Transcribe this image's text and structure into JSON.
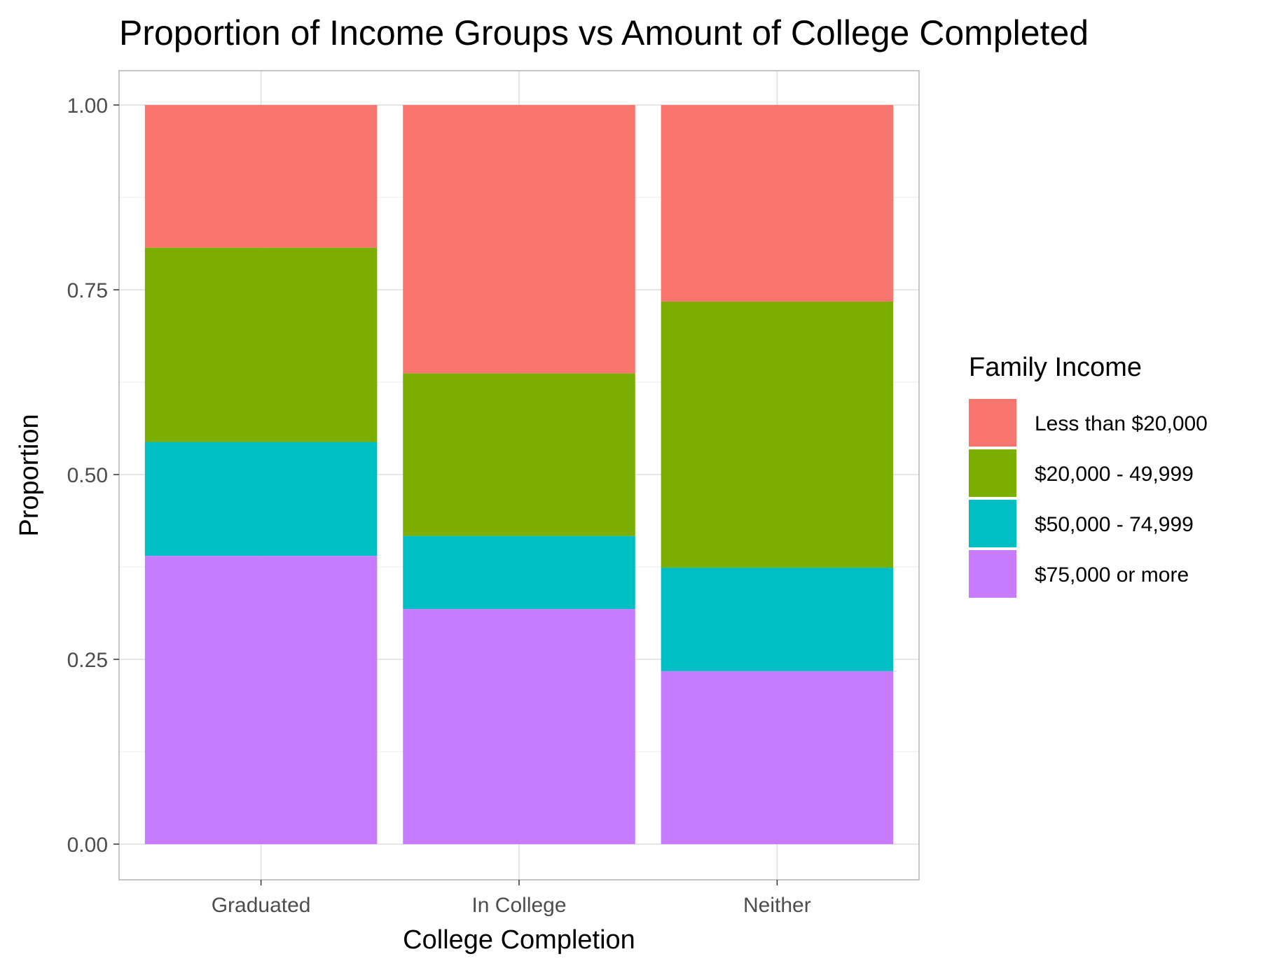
{
  "chart_data": {
    "type": "bar",
    "stacked": true,
    "title": "Proportion of Income Groups vs Amount of College Completed",
    "xlabel": "College Completion",
    "ylabel": "Proportion",
    "categories": [
      "Graduated",
      "In College",
      "Neither"
    ],
    "ylim": [
      0,
      1
    ],
    "y_ticks": [
      "0.00",
      "0.25",
      "0.50",
      "0.75",
      "1.00"
    ],
    "grid": true,
    "legend": {
      "title": "Family Income",
      "position": "right"
    },
    "series": [
      {
        "name": "$75,000 or more",
        "color": "#C77CFF",
        "values": [
          0.39,
          0.318,
          0.234
        ]
      },
      {
        "name": "$50,000 - 74,999",
        "color": "#00BFC4",
        "values": [
          0.154,
          0.099,
          0.14
        ]
      },
      {
        "name": "$20,000 - 49,999",
        "color": "#7CAE00",
        "values": [
          0.263,
          0.22,
          0.36
        ]
      },
      {
        "name": "Less than $20,000",
        "color": "#F8766D",
        "values": [
          0.193,
          0.363,
          0.266
        ]
      }
    ]
  }
}
